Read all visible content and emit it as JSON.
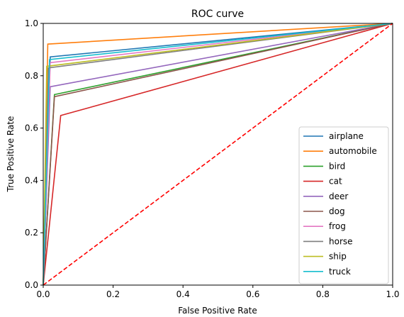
{
  "chart_data": {
    "type": "line",
    "title": "ROC curve",
    "xlabel": "False Positive Rate",
    "ylabel": "True Positive Rate",
    "xlim": [
      0,
      1
    ],
    "ylim": [
      0,
      1
    ],
    "xticks": [
      "0.0",
      "0.2",
      "0.4",
      "0.6",
      "0.8",
      "1.0"
    ],
    "yticks": [
      "0.0",
      "0.2",
      "0.4",
      "0.6",
      "0.8",
      "1.0"
    ],
    "grid": false,
    "legend_position": "lower-right",
    "series": [
      {
        "name": "airplane",
        "color": "#1f77b4",
        "x": [
          0,
          0.02,
          1
        ],
        "y": [
          0,
          0.872,
          1
        ]
      },
      {
        "name": "automobile",
        "color": "#ff7f0e",
        "x": [
          0,
          0.013,
          1
        ],
        "y": [
          0,
          0.921,
          1
        ]
      },
      {
        "name": "bird",
        "color": "#2ca02c",
        "x": [
          0,
          0.032,
          1
        ],
        "y": [
          0,
          0.728,
          1
        ]
      },
      {
        "name": "cat",
        "color": "#d62728",
        "x": [
          0,
          0.05,
          1
        ],
        "y": [
          0,
          0.648,
          1
        ]
      },
      {
        "name": "deer",
        "color": "#9467bd",
        "x": [
          0,
          0.02,
          1
        ],
        "y": [
          0,
          0.758,
          1
        ]
      },
      {
        "name": "dog",
        "color": "#8c564b",
        "x": [
          0,
          0.032,
          1
        ],
        "y": [
          0,
          0.72,
          1
        ]
      },
      {
        "name": "frog",
        "color": "#e377c2",
        "x": [
          0,
          0.02,
          1
        ],
        "y": [
          0,
          0.85,
          1
        ]
      },
      {
        "name": "horse",
        "color": "#7f7f7f",
        "x": [
          0,
          0.015,
          1
        ],
        "y": [
          0,
          0.83,
          1
        ]
      },
      {
        "name": "ship",
        "color": "#bcbd22",
        "x": [
          0,
          0.01,
          1
        ],
        "y": [
          0,
          0.836,
          1
        ]
      },
      {
        "name": "truck",
        "color": "#17becf",
        "x": [
          0,
          0.018,
          1
        ],
        "y": [
          0,
          0.862,
          1
        ]
      }
    ],
    "reference_line": {
      "color": "#ff0000",
      "style": "dashed",
      "x": [
        0,
        1
      ],
      "y": [
        0,
        1
      ]
    }
  }
}
